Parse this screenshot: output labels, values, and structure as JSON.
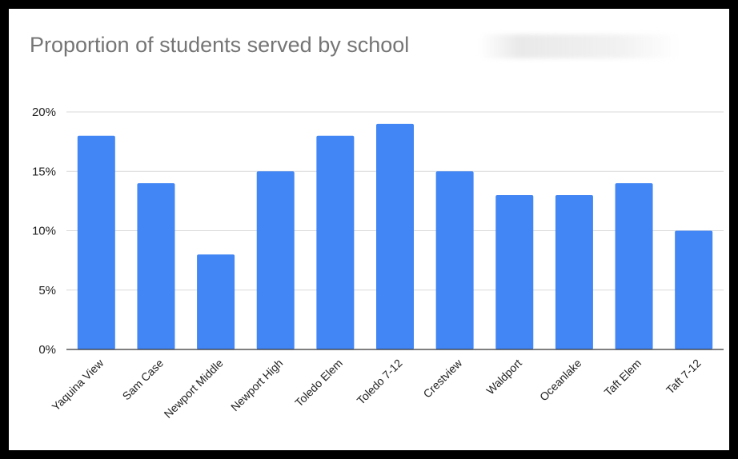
{
  "chart_data": {
    "type": "bar",
    "title": "Proportion of students served by school",
    "xlabel": "",
    "ylabel": "",
    "categories": [
      "Yaquina View",
      "Sam Case",
      "Newport Middle",
      "Newport High",
      "Toledo Elem",
      "Toledo 7-12",
      "Crestview",
      "Waldport",
      "Oceanlake",
      "Taft Elem",
      "Taft 7-12"
    ],
    "values": [
      18,
      14,
      8,
      15,
      18,
      19,
      15,
      13,
      13,
      14,
      10
    ],
    "ylim": [
      0,
      20
    ],
    "yticks": [
      0,
      5,
      10,
      15,
      20
    ],
    "ytick_labels": [
      "0%",
      "5%",
      "10%",
      "15%",
      "20%"
    ],
    "grid": true,
    "legend": "none",
    "colors": {
      "bar": "#4285f4",
      "grid": "#d9d9d9",
      "axis": "#333333",
      "title": "#757575"
    }
  }
}
